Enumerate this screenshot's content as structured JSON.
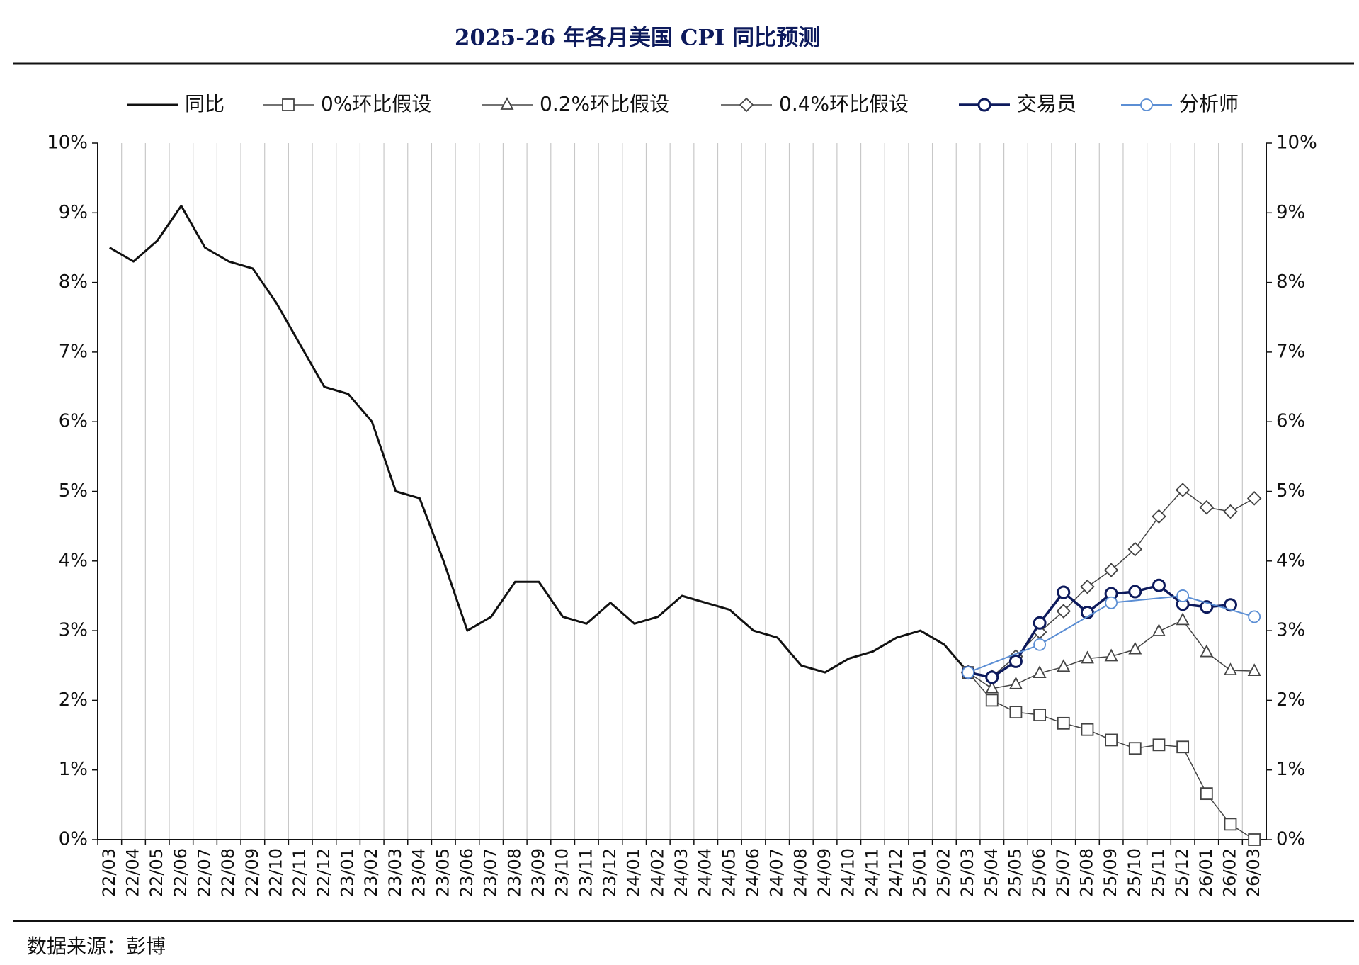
{
  "chart_data": {
    "type": "line",
    "title": "2025-26 年各月美国 CPI 同比预测",
    "source": "数据来源：彭博",
    "categories": [
      "22/03",
      "22/04",
      "22/05",
      "22/06",
      "22/07",
      "22/08",
      "22/09",
      "22/10",
      "22/11",
      "22/12",
      "23/01",
      "23/02",
      "23/03",
      "23/04",
      "23/05",
      "23/06",
      "23/07",
      "23/08",
      "23/09",
      "23/10",
      "23/11",
      "23/12",
      "24/01",
      "24/02",
      "24/03",
      "24/04",
      "24/05",
      "24/06",
      "24/07",
      "24/08",
      "24/09",
      "24/10",
      "24/11",
      "24/12",
      "25/01",
      "25/02",
      "25/03",
      "25/04",
      "25/05",
      "25/06",
      "25/07",
      "25/08",
      "25/09",
      "25/10",
      "25/11",
      "25/12",
      "26/01",
      "26/02",
      "26/03"
    ],
    "ylim": [
      0,
      10
    ],
    "yticks": [
      {
        "value": 0,
        "label": "0%"
      },
      {
        "value": 1,
        "label": "1%"
      },
      {
        "value": 2,
        "label": "2%"
      },
      {
        "value": 3,
        "label": "3%"
      },
      {
        "value": 4,
        "label": "4%"
      },
      {
        "value": 5,
        "label": "5%"
      },
      {
        "value": 6,
        "label": "6%"
      },
      {
        "value": 7,
        "label": "7%"
      },
      {
        "value": 8,
        "label": "8%"
      },
      {
        "value": 9,
        "label": "9%"
      },
      {
        "value": 10,
        "label": "10%"
      }
    ],
    "grid": true,
    "series": [
      {
        "name": "同比",
        "color": "#111111",
        "marker": "none",
        "values": [
          8.5,
          8.3,
          8.6,
          9.1,
          8.5,
          8.3,
          8.2,
          7.7,
          7.1,
          6.5,
          6.4,
          6.0,
          5.0,
          4.9,
          4.0,
          3.0,
          3.2,
          3.7,
          3.7,
          3.2,
          3.1,
          3.4,
          3.1,
          3.2,
          3.5,
          3.4,
          3.3,
          3.0,
          2.9,
          2.5,
          2.4,
          2.6,
          2.7,
          2.9,
          3.0,
          2.8,
          2.4,
          null,
          null,
          null,
          null,
          null,
          null,
          null,
          null,
          null,
          null,
          null,
          null
        ]
      },
      {
        "name": "0%环比假设",
        "color": "#444444",
        "marker": "square",
        "values": [
          null,
          null,
          null,
          null,
          null,
          null,
          null,
          null,
          null,
          null,
          null,
          null,
          null,
          null,
          null,
          null,
          null,
          null,
          null,
          null,
          null,
          null,
          null,
          null,
          null,
          null,
          null,
          null,
          null,
          null,
          null,
          null,
          null,
          null,
          null,
          null,
          2.4,
          2.0,
          1.83,
          1.79,
          1.67,
          1.58,
          1.43,
          1.31,
          1.36,
          1.33,
          0.66,
          0.22,
          0.0
        ]
      },
      {
        "name": "0.2%环比假设",
        "color": "#444444",
        "marker": "triangle",
        "values": [
          null,
          null,
          null,
          null,
          null,
          null,
          null,
          null,
          null,
          null,
          null,
          null,
          null,
          null,
          null,
          null,
          null,
          null,
          null,
          null,
          null,
          null,
          null,
          null,
          null,
          null,
          null,
          null,
          null,
          null,
          null,
          null,
          null,
          null,
          null,
          null,
          2.4,
          2.17,
          2.23,
          2.39,
          2.48,
          2.6,
          2.63,
          2.73,
          2.99,
          3.15,
          2.69,
          2.43,
          2.42
        ]
      },
      {
        "name": "0.4%环比假设",
        "color": "#444444",
        "marker": "diamond",
        "values": [
          null,
          null,
          null,
          null,
          null,
          null,
          null,
          null,
          null,
          null,
          null,
          null,
          null,
          null,
          null,
          null,
          null,
          null,
          null,
          null,
          null,
          null,
          null,
          null,
          null,
          null,
          null,
          null,
          null,
          null,
          null,
          null,
          null,
          null,
          null,
          null,
          2.4,
          2.34,
          2.63,
          2.98,
          3.28,
          3.63,
          3.87,
          4.17,
          4.64,
          5.02,
          4.77,
          4.71,
          4.9
        ]
      },
      {
        "name": "交易员",
        "color": "#0d1a5c",
        "marker": "circle",
        "values": [
          null,
          null,
          null,
          null,
          null,
          null,
          null,
          null,
          null,
          null,
          null,
          null,
          null,
          null,
          null,
          null,
          null,
          null,
          null,
          null,
          null,
          null,
          null,
          null,
          null,
          null,
          null,
          null,
          null,
          null,
          null,
          null,
          null,
          null,
          null,
          null,
          2.4,
          2.33,
          2.56,
          3.11,
          3.55,
          3.26,
          3.53,
          3.56,
          3.65,
          3.38,
          3.34,
          3.37,
          null
        ]
      },
      {
        "name": "分析师",
        "color": "#5b8ed4",
        "marker": "circle",
        "connect_gaps": true,
        "values": [
          null,
          null,
          null,
          null,
          null,
          null,
          null,
          null,
          null,
          null,
          null,
          null,
          null,
          null,
          null,
          null,
          null,
          null,
          null,
          null,
          null,
          null,
          null,
          null,
          null,
          null,
          null,
          null,
          null,
          null,
          null,
          null,
          null,
          null,
          null,
          null,
          2.4,
          null,
          null,
          2.8,
          null,
          null,
          3.4,
          null,
          null,
          3.5,
          null,
          null,
          3.2
        ]
      }
    ]
  }
}
